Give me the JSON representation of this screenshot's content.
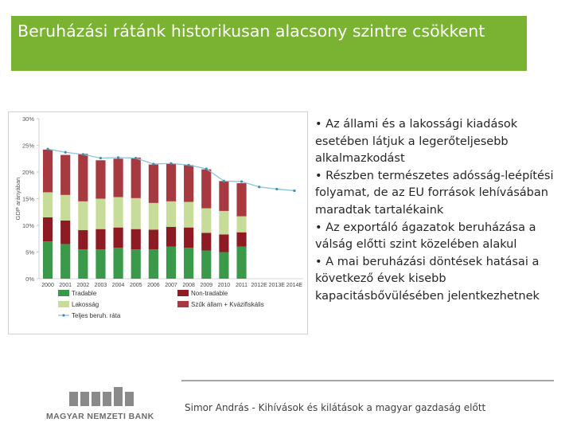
{
  "slide": {
    "title": "Beruházási rátánk historikusan alacsony szintre csökkent",
    "bullets": [
      "• Az állami és a lakossági kiadások esetében látjuk a legerőteljesebb alkalmazkodást",
      "• Részben természetes adósság-leépítési folyamat, de az EU források lehívásában maradtak tartalékaink",
      "• Az exportáló ágazatok beruházása a válság előtti szint közelében alakul",
      "• A  mai beruházási döntések hatásai a következő évek kisebb kapacitásbővülésében jelentkezhetnek"
    ],
    "footer": "Simor András - Kihívások és kilátások a magyar gazdaság előtt",
    "logo_text": "MAGYAR NEMZETI BANK"
  },
  "colors": {
    "title_bar": "#7ab231",
    "tradable": "#3a9a4a",
    "non_tradable": "#8e1a24",
    "lakossag": "#c8dc9a",
    "szuk_allam": "#a63a40",
    "total_line": "#8cc5d6",
    "logo_grey": "#8a8a8a"
  },
  "chart_data": {
    "type": "bar",
    "stacked": true,
    "categories": [
      "2000",
      "2001",
      "2002",
      "2003",
      "2004",
      "2005",
      "2006",
      "2007",
      "2008",
      "2009",
      "2010",
      "2011",
      "2012E",
      "2013E",
      "2014E"
    ],
    "ylabel": "GDP arányában",
    "ylim": [
      0,
      30
    ],
    "yticks": [
      "0%",
      "5%",
      "10%",
      "15%",
      "20%",
      "25%",
      "30%"
    ],
    "series": [
      {
        "name": "Tradable",
        "color": "#3a9a4a",
        "values": [
          7.0,
          6.5,
          5.5,
          5.5,
          5.8,
          5.5,
          5.5,
          6.0,
          5.8,
          5.3,
          5.0,
          6.0,
          null,
          null,
          null
        ]
      },
      {
        "name": "Non-tradable",
        "color": "#8e1a24",
        "values": [
          4.5,
          4.4,
          3.6,
          3.8,
          3.8,
          3.8,
          3.7,
          3.7,
          3.8,
          3.3,
          3.3,
          2.7,
          null,
          null,
          null
        ]
      },
      {
        "name": "Lakosság",
        "color": "#c8dc9a",
        "values": [
          4.7,
          4.8,
          5.4,
          5.7,
          5.7,
          5.8,
          5.0,
          4.8,
          4.8,
          4.6,
          4.4,
          3.0,
          null,
          null,
          null
        ]
      },
      {
        "name": "Szűk állam + Kvázifiskális",
        "color": "#a63a40",
        "values": [
          8.0,
          7.5,
          8.9,
          7.2,
          7.2,
          7.6,
          7.2,
          7.1,
          6.9,
          7.3,
          5.6,
          6.2,
          null,
          null,
          null
        ]
      }
    ],
    "line": {
      "name": "Teljes beruh. ráta",
      "color": "#8cc5d6",
      "values": [
        24.3,
        23.7,
        23.3,
        22.6,
        22.7,
        22.6,
        21.5,
        21.6,
        21.3,
        20.6,
        18.3,
        18.2,
        17.2,
        16.8,
        16.5
      ]
    },
    "legend_position": "bottom"
  }
}
